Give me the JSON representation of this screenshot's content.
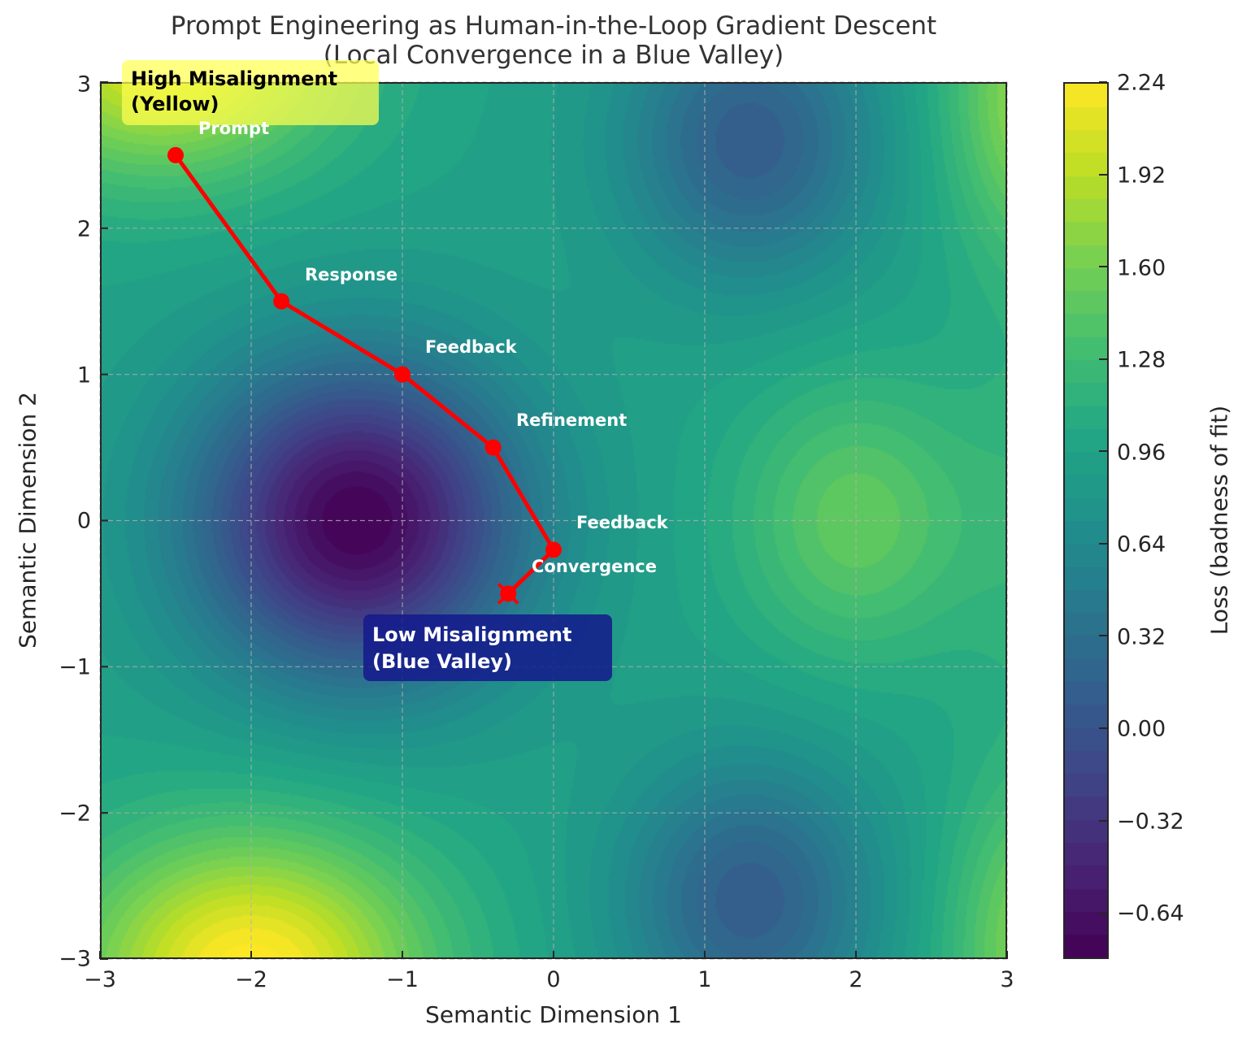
{
  "chart_data": {
    "type": "heatmap",
    "subtype": "filled_contour_with_path",
    "title": "Prompt Engineering as Human-in-the-Loop Gradient Descent\n(Local Convergence in a Blue Valley)",
    "title_lines": [
      "Prompt Engineering as Human-in-the-Loop Gradient Descent",
      "(Local Convergence in a Blue Valley)"
    ],
    "xlabel": "Semantic Dimension 1",
    "ylabel": "Semantic Dimension 2",
    "xlim": [
      -3,
      3
    ],
    "ylim": [
      -3,
      3
    ],
    "xticks": [
      -3,
      -2,
      -1,
      0,
      1,
      2,
      3
    ],
    "xtick_labels": [
      "−3",
      "−2",
      "−1",
      "0",
      "1",
      "2",
      "3"
    ],
    "yticks": [
      3,
      2,
      1,
      0,
      -1,
      -2,
      -3
    ],
    "ytick_labels": [
      "3",
      "2",
      "1",
      "0",
      "−1",
      "−2",
      "−3"
    ],
    "grid": true,
    "grid_style": "dashed",
    "colormap": "viridis",
    "colorbar": {
      "label": "Loss (badness of fit)",
      "range": [
        -0.8,
        2.24
      ],
      "ticks": [
        2.24,
        1.92,
        1.6,
        1.28,
        0.96,
        0.64,
        0.32,
        0.0,
        -0.32,
        -0.64
      ],
      "tick_labels": [
        "2.24",
        "1.92",
        "1.60",
        "1.28",
        "0.96",
        "0.64",
        "0.32",
        "0.00",
        "−0.32",
        "−0.64"
      ]
    },
    "surface_features": [
      {
        "type": "minimum",
        "x": -1.3,
        "y": 0.0,
        "approx_value": -0.75,
        "description": "deep purple valley"
      },
      {
        "type": "local_minimum",
        "x": 1.3,
        "y": 2.6,
        "approx_value": 0.05
      },
      {
        "type": "local_minimum",
        "x": 1.3,
        "y": -2.6,
        "approx_value": 0.05
      },
      {
        "type": "local_maximum",
        "x": 2.0,
        "y": 0.0,
        "approx_value": 1.45
      },
      {
        "type": "maximum",
        "x": -2.0,
        "y": -3.0,
        "approx_value": 2.2,
        "description": "yellow corner"
      },
      {
        "type": "high",
        "x": -2.5,
        "y": 3.0,
        "approx_value": 2.1,
        "description": "yellow corner"
      }
    ],
    "series": [
      {
        "name": "optimization path",
        "color": "#ff0000",
        "marker": "o",
        "x": [
          -2.5,
          -1.8,
          -1.0,
          -0.4,
          0.0,
          -0.3
        ],
        "y": [
          2.5,
          1.5,
          1.0,
          0.5,
          -0.2,
          -0.5
        ],
        "point_labels": [
          "Prompt",
          "Response",
          "Feedback",
          "Refinement",
          "Feedback",
          "Convergence"
        ],
        "final_marker": "x"
      }
    ],
    "annotations": [
      {
        "text": "High Misalignment\n(Yellow)",
        "x": -2.8,
        "y": 2.8,
        "box_color": "#ffff50"
      },
      {
        "text": "Low Misalignment\n(Blue Valley)",
        "x": -1.2,
        "y": -0.9,
        "box_color": "#14198c"
      }
    ]
  },
  "labels": {
    "title_line1": "Prompt Engineering as Human-in-the-Loop Gradient Descent",
    "title_line2": "(Local Convergence in a Blue Valley)",
    "xlabel": "Semantic Dimension 1",
    "ylabel": "Semantic Dimension 2",
    "cbar_label": "Loss (badness of fit)",
    "high_line1": "High Misalignment",
    "high_line2": "(Yellow)",
    "low_line1": "Low Misalignment",
    "low_line2": "(Blue Valley)",
    "steps": [
      "Prompt",
      "Response",
      "Feedback",
      "Refinement",
      "Feedback",
      "Convergence"
    ],
    "xticks": [
      "−3",
      "−2",
      "−1",
      "0",
      "1",
      "2",
      "3"
    ],
    "yticks": [
      "3",
      "2",
      "1",
      "0",
      "−1",
      "−2",
      "−3"
    ],
    "cbar_ticks": [
      "2.24",
      "1.92",
      "1.60",
      "1.28",
      "0.96",
      "0.64",
      "0.32",
      "0.00",
      "−0.32",
      "−0.64"
    ]
  },
  "colors": {
    "path": "#ff0000",
    "grid": "#b0b0b0",
    "axis": "#262626"
  }
}
